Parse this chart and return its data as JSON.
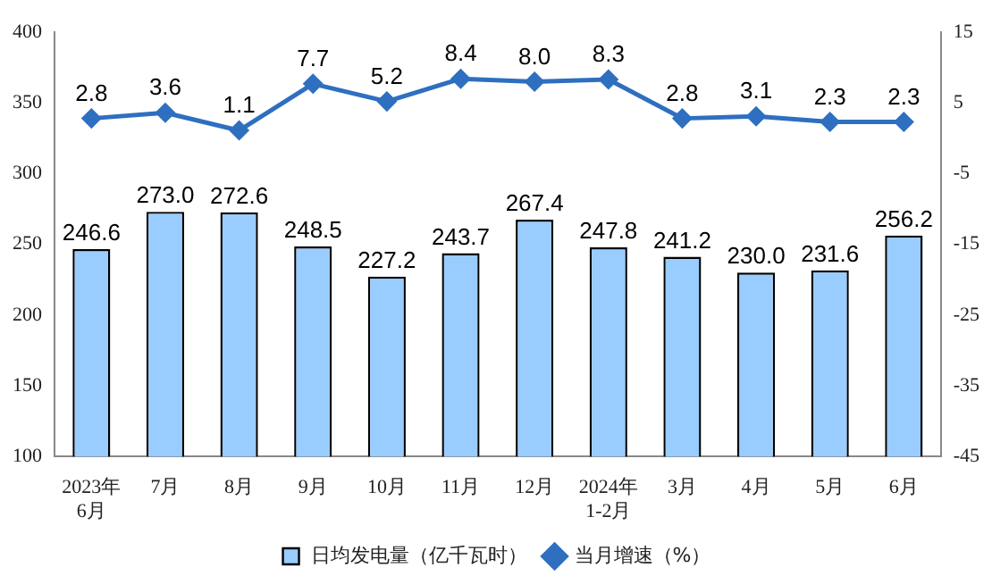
{
  "chart_data": {
    "type": "bar",
    "categories": [
      "2023年\n6月",
      "7月",
      "8月",
      "9月",
      "10月",
      "11月",
      "12月",
      "2024年\n1-2月",
      "3月",
      "4月",
      "5月",
      "6月"
    ],
    "series": [
      {
        "name": "日均发电量（亿千瓦时）",
        "color": "#99ccff",
        "values": [
          246.6,
          273.0,
          272.6,
          248.5,
          227.2,
          243.7,
          267.4,
          247.8,
          241.2,
          230.0,
          231.6,
          256.2
        ],
        "value_labels": [
          "246.6",
          "273.0",
          "272.6",
          "248.5",
          "227.2",
          "243.7",
          "267.4",
          "247.8",
          "241.2",
          "230.0",
          "231.6",
          "256.2"
        ]
      },
      {
        "name": "当月增速（%）",
        "type": "line",
        "axis": "y2",
        "color": "#2e6fc0",
        "values": [
          2.8,
          3.6,
          1.1,
          7.7,
          5.2,
          8.4,
          8.0,
          8.3,
          2.8,
          3.1,
          2.3,
          2.3
        ],
        "value_labels": [
          "2.8",
          "3.6",
          "1.1",
          "7.7",
          "5.2",
          "8.4",
          "8.0",
          "8.3",
          "2.8",
          "3.1",
          "2.3",
          "2.3"
        ]
      }
    ],
    "ylim": [
      100,
      400
    ],
    "yticks": [
      100,
      150,
      200,
      250,
      300,
      350,
      400
    ],
    "y2lim": [
      -45,
      15
    ],
    "y2ticks": [
      -45,
      -35,
      -25,
      -15,
      -5,
      5,
      15
    ],
    "grid": false,
    "legend": "bottom",
    "marker": "diamond",
    "line_style": "solid"
  }
}
